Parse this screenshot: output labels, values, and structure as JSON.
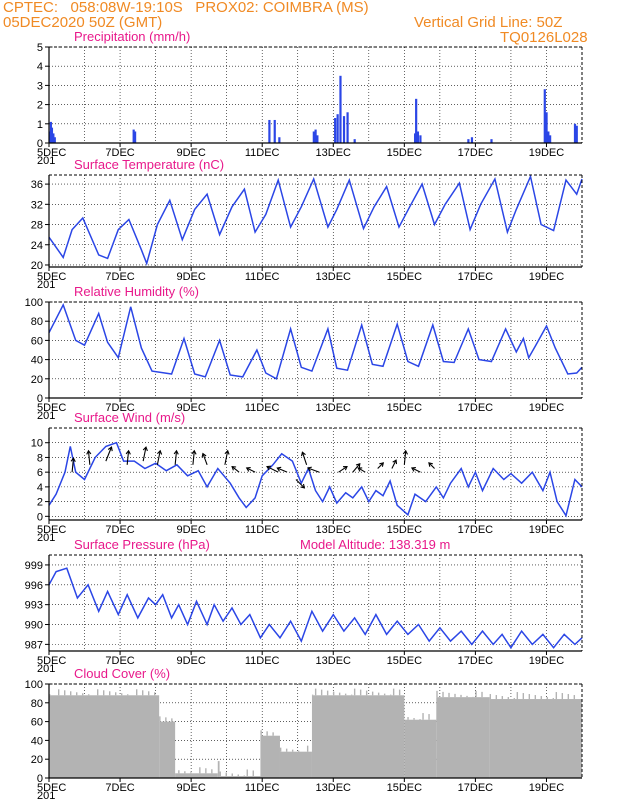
{
  "header": {
    "line1": "CPTEC:   058:08W-19:10S   PROX02: COIMBRA (MS)",
    "date": "05DEC2020 50Z (GMT)",
    "grid": "Vertical Grid Line: 50Z",
    "code": "TQ0126L028"
  },
  "colors": {
    "series": "#2b46e6",
    "title": "#e8198b",
    "header": "#f08a24",
    "cloud": "#b3b3b3"
  },
  "x_labels": [
    "5DEC",
    "7DEC",
    "9DEC",
    "11DEC",
    "13DEC",
    "15DEC",
    "17DEC",
    "19DEC"
  ],
  "year_fragment": "201",
  "chart_data": [
    {
      "type": "bar",
      "title": "Precipitation (mm/h)",
      "ylim": [
        0,
        5
      ],
      "yticks": [
        0,
        1,
        2,
        3,
        4,
        5
      ],
      "xlim": [
        0,
        15
      ],
      "points": [
        [
          0.02,
          0.6
        ],
        [
          0.05,
          1.1
        ],
        [
          0.08,
          0.8
        ],
        [
          0.12,
          0.5
        ],
        [
          0.16,
          0.3
        ],
        [
          2.38,
          0.7
        ],
        [
          2.42,
          0.6
        ],
        [
          6.2,
          1.2
        ],
        [
          6.35,
          1.2
        ],
        [
          6.48,
          0.3
        ],
        [
          7.45,
          0.6
        ],
        [
          7.5,
          0.7
        ],
        [
          7.55,
          0.4
        ],
        [
          8.05,
          1.3
        ],
        [
          8.12,
          1.5
        ],
        [
          8.2,
          3.5
        ],
        [
          8.3,
          1.4
        ],
        [
          8.4,
          1.6
        ],
        [
          8.6,
          0.2
        ],
        [
          10.3,
          0.5
        ],
        [
          10.33,
          2.3
        ],
        [
          10.38,
          0.6
        ],
        [
          10.45,
          0.4
        ],
        [
          11.8,
          0.2
        ],
        [
          11.9,
          0.3
        ],
        [
          12.45,
          0.2
        ],
        [
          13.95,
          2.8
        ],
        [
          14.0,
          1.6
        ],
        [
          14.05,
          0.6
        ],
        [
          14.1,
          0.4
        ],
        [
          14.8,
          1.0
        ],
        [
          14.85,
          0.9
        ]
      ]
    },
    {
      "type": "line",
      "title": "Surface Temperature (nC)",
      "ylim": [
        19.6,
        37.8
      ],
      "yticks": [
        20,
        24,
        28,
        32,
        36
      ],
      "xlim": [
        0,
        15
      ],
      "points": [
        [
          0,
          25.5
        ],
        [
          0.4,
          21.5
        ],
        [
          0.65,
          27
        ],
        [
          0.95,
          29.3
        ],
        [
          1.4,
          22
        ],
        [
          1.65,
          21.3
        ],
        [
          1.95,
          27
        ],
        [
          2.25,
          29
        ],
        [
          2.6,
          23
        ],
        [
          2.75,
          20.3
        ],
        [
          3.05,
          28
        ],
        [
          3.4,
          32.8
        ],
        [
          3.75,
          25
        ],
        [
          4.1,
          31
        ],
        [
          4.45,
          34
        ],
        [
          4.8,
          26
        ],
        [
          5.15,
          31.5
        ],
        [
          5.5,
          35
        ],
        [
          5.8,
          26.5
        ],
        [
          6.1,
          30
        ],
        [
          6.45,
          36.8
        ],
        [
          6.8,
          27.5
        ],
        [
          7.1,
          31.5
        ],
        [
          7.45,
          37
        ],
        [
          7.85,
          27.5
        ],
        [
          8.1,
          31
        ],
        [
          8.45,
          36.8
        ],
        [
          8.85,
          27.2
        ],
        [
          9.15,
          31.5
        ],
        [
          9.5,
          35.5
        ],
        [
          9.85,
          27.5
        ],
        [
          10.15,
          31.5
        ],
        [
          10.5,
          36
        ],
        [
          10.85,
          28
        ],
        [
          11.15,
          32
        ],
        [
          11.55,
          36.2
        ],
        [
          11.85,
          27
        ],
        [
          12.15,
          32
        ],
        [
          12.55,
          37
        ],
        [
          12.9,
          26.5
        ],
        [
          13.15,
          31
        ],
        [
          13.55,
          37.5
        ],
        [
          13.85,
          28
        ],
        [
          14.2,
          26.8
        ],
        [
          14.55,
          36.8
        ],
        [
          14.85,
          34
        ],
        [
          15,
          37
        ]
      ]
    },
    {
      "type": "line",
      "title": "Relative Humidity (%)",
      "ylim": [
        0,
        100
      ],
      "yticks": [
        0,
        20,
        40,
        60,
        80,
        100
      ],
      "xlim": [
        0,
        15
      ],
      "points": [
        [
          0,
          68
        ],
        [
          0.4,
          97
        ],
        [
          0.75,
          60
        ],
        [
          1.0,
          55
        ],
        [
          1.4,
          88
        ],
        [
          1.65,
          58
        ],
        [
          1.95,
          42
        ],
        [
          2.3,
          95
        ],
        [
          2.6,
          52
        ],
        [
          2.9,
          28
        ],
        [
          3.45,
          25
        ],
        [
          3.8,
          62
        ],
        [
          4.1,
          25
        ],
        [
          4.4,
          22
        ],
        [
          4.8,
          60
        ],
        [
          5.1,
          24
        ],
        [
          5.45,
          22
        ],
        [
          5.85,
          50
        ],
        [
          6.1,
          26
        ],
        [
          6.4,
          20
        ],
        [
          6.8,
          72
        ],
        [
          7.1,
          32
        ],
        [
          7.4,
          28
        ],
        [
          7.85,
          72
        ],
        [
          8.1,
          31
        ],
        [
          8.4,
          29
        ],
        [
          8.8,
          76
        ],
        [
          9.1,
          35
        ],
        [
          9.4,
          33
        ],
        [
          9.8,
          77
        ],
        [
          10.1,
          38
        ],
        [
          10.4,
          33
        ],
        [
          10.8,
          76
        ],
        [
          11.1,
          38
        ],
        [
          11.4,
          37
        ],
        [
          11.8,
          72
        ],
        [
          12.1,
          40
        ],
        [
          12.45,
          38
        ],
        [
          12.85,
          72
        ],
        [
          13.15,
          48
        ],
        [
          13.35,
          62
        ],
        [
          13.5,
          42
        ],
        [
          13.7,
          55
        ],
        [
          14.0,
          75
        ],
        [
          14.25,
          52
        ],
        [
          14.6,
          25
        ],
        [
          14.85,
          26
        ],
        [
          15,
          32
        ]
      ]
    },
    {
      "type": "line",
      "title": "Surface Wind (m/s)",
      "ylim": [
        -0.5,
        12
      ],
      "yticks": [
        0,
        2,
        4,
        6,
        8,
        10
      ],
      "xlim": [
        0,
        15
      ],
      "points": [
        [
          0,
          1.5
        ],
        [
          0.2,
          3
        ],
        [
          0.45,
          6
        ],
        [
          0.6,
          9.5
        ],
        [
          0.75,
          6
        ],
        [
          1.0,
          5
        ],
        [
          1.3,
          8
        ],
        [
          1.6,
          9.5
        ],
        [
          1.9,
          10
        ],
        [
          2.1,
          7.5
        ],
        [
          2.4,
          7.5
        ],
        [
          2.7,
          6.5
        ],
        [
          3.0,
          7.2
        ],
        [
          3.3,
          6.2
        ],
        [
          3.6,
          7
        ],
        [
          3.9,
          5.5
        ],
        [
          4.2,
          6.2
        ],
        [
          4.45,
          4
        ],
        [
          4.75,
          6.5
        ],
        [
          5.1,
          4.5
        ],
        [
          5.35,
          2.5
        ],
        [
          5.55,
          1.2
        ],
        [
          5.8,
          2.5
        ],
        [
          6.0,
          5.5
        ],
        [
          6.3,
          7
        ],
        [
          6.55,
          8.5
        ],
        [
          6.85,
          7.5
        ],
        [
          7.1,
          4.5
        ],
        [
          7.3,
          6.5
        ],
        [
          7.5,
          3.5
        ],
        [
          7.7,
          2
        ],
        [
          7.9,
          4
        ],
        [
          8.1,
          1.8
        ],
        [
          8.35,
          3.2
        ],
        [
          8.55,
          2.5
        ],
        [
          8.8,
          4
        ],
        [
          9.0,
          2
        ],
        [
          9.2,
          3.5
        ],
        [
          9.4,
          2.8
        ],
        [
          9.6,
          4.8
        ],
        [
          9.8,
          1.5
        ],
        [
          10.1,
          0.2
        ],
        [
          10.3,
          3
        ],
        [
          10.6,
          2
        ],
        [
          10.9,
          4
        ],
        [
          11.1,
          2.5
        ],
        [
          11.3,
          4.5
        ],
        [
          11.6,
          6.5
        ],
        [
          11.8,
          4
        ],
        [
          12.0,
          6
        ],
        [
          12.2,
          3.5
        ],
        [
          12.5,
          6.5
        ],
        [
          12.8,
          5
        ],
        [
          13.0,
          5.8
        ],
        [
          13.3,
          4.5
        ],
        [
          13.6,
          6
        ],
        [
          13.9,
          3.5
        ],
        [
          14.1,
          6
        ],
        [
          14.3,
          2
        ],
        [
          14.55,
          0.1
        ],
        [
          14.8,
          5
        ],
        [
          15,
          4
        ]
      ],
      "barbs": [
        [
          0.65,
          6,
          0.1,
          1
        ],
        [
          1.15,
          7,
          -0.1,
          1
        ],
        [
          1.6,
          7.5,
          0.4,
          1
        ],
        [
          2.2,
          7,
          0.1,
          1
        ],
        [
          2.65,
          7.5,
          0.2,
          1
        ],
        [
          3.05,
          7,
          0.2,
          1
        ],
        [
          3.55,
          7,
          0.1,
          1
        ],
        [
          4.05,
          7,
          0.1,
          1
        ],
        [
          4.45,
          7,
          -0.3,
          0.8
        ],
        [
          4.95,
          7,
          0.2,
          1
        ],
        [
          5.35,
          6,
          -0.5,
          0.4
        ],
        [
          5.8,
          6,
          -0.6,
          0.3
        ],
        [
          6.45,
          6,
          -0.8,
          0.4
        ],
        [
          6.7,
          6,
          -0.7,
          0.3
        ],
        [
          6.95,
          5,
          0.6,
          -0.6
        ],
        [
          7.25,
          7,
          -0.3,
          0.9
        ],
        [
          7.6,
          6,
          -0.8,
          0.3
        ],
        [
          8.15,
          6,
          0.6,
          0.4
        ],
        [
          8.55,
          6,
          0.5,
          0.6
        ],
        [
          8.9,
          6,
          -0.5,
          0.3
        ],
        [
          9.25,
          6.5,
          0.4,
          0.4
        ],
        [
          9.65,
          6.5,
          0.3,
          0.6
        ],
        [
          10.0,
          7,
          0.1,
          1
        ],
        [
          10.45,
          6,
          -0.6,
          0.3
        ],
        [
          10.85,
          6.5,
          -0.4,
          0.4
        ]
      ]
    },
    {
      "type": "line",
      "title": "Surface Pressure (hPa)",
      "annotation": "Model Altitude: 138.319 m",
      "ylim": [
        986,
        1000.5
      ],
      "yticks": [
        987,
        990,
        993,
        996,
        999
      ],
      "xlim": [
        0,
        15
      ],
      "points": [
        [
          0,
          996
        ],
        [
          0.2,
          998
        ],
        [
          0.5,
          998.5
        ],
        [
          0.8,
          994
        ],
        [
          1.1,
          996
        ],
        [
          1.4,
          992
        ],
        [
          1.65,
          995
        ],
        [
          1.95,
          991.5
        ],
        [
          2.2,
          994.5
        ],
        [
          2.5,
          991
        ],
        [
          2.8,
          994
        ],
        [
          3.0,
          993
        ],
        [
          3.2,
          994.5
        ],
        [
          3.45,
          991
        ],
        [
          3.65,
          993
        ],
        [
          3.9,
          990
        ],
        [
          4.15,
          993.5
        ],
        [
          4.45,
          990
        ],
        [
          4.65,
          993
        ],
        [
          4.9,
          990.5
        ],
        [
          5.15,
          992.5
        ],
        [
          5.4,
          990
        ],
        [
          5.65,
          991.5
        ],
        [
          5.95,
          988
        ],
        [
          6.2,
          990
        ],
        [
          6.5,
          988
        ],
        [
          6.8,
          990.5
        ],
        [
          7.1,
          987.5
        ],
        [
          7.4,
          992
        ],
        [
          7.7,
          989
        ],
        [
          8.0,
          991.5
        ],
        [
          8.3,
          989
        ],
        [
          8.6,
          991
        ],
        [
          8.9,
          988.5
        ],
        [
          9.2,
          991.5
        ],
        [
          9.5,
          988.5
        ],
        [
          9.8,
          990.5
        ],
        [
          10.1,
          988.5
        ],
        [
          10.4,
          990
        ],
        [
          10.7,
          987.5
        ],
        [
          11.0,
          989.5
        ],
        [
          11.3,
          987.5
        ],
        [
          11.6,
          989
        ],
        [
          11.9,
          987
        ],
        [
          12.2,
          989
        ],
        [
          12.5,
          987
        ],
        [
          12.75,
          988.5
        ],
        [
          13.0,
          986.5
        ],
        [
          13.3,
          989
        ],
        [
          13.6,
          987
        ],
        [
          13.9,
          988.5
        ],
        [
          14.2,
          986.5
        ],
        [
          14.5,
          988.5
        ],
        [
          14.8,
          987
        ],
        [
          15,
          988
        ]
      ]
    },
    {
      "type": "area",
      "title": "Cloud Cover (%)",
      "ylim": [
        0,
        100
      ],
      "yticks": [
        0,
        20,
        40,
        60,
        80,
        100
      ],
      "xlim": [
        0,
        15
      ],
      "segments": [
        [
          0,
          3.1,
          88
        ],
        [
          3.1,
          3.55,
          60
        ],
        [
          3.55,
          4.75,
          5
        ],
        [
          4.75,
          4.8,
          18
        ],
        [
          4.8,
          5.95,
          2
        ],
        [
          5.95,
          6.5,
          45
        ],
        [
          6.5,
          7.4,
          28
        ],
        [
          7.4,
          10.0,
          88
        ],
        [
          10.0,
          10.9,
          62
        ],
        [
          10.9,
          12.4,
          86
        ],
        [
          12.4,
          15,
          84
        ]
      ]
    }
  ]
}
